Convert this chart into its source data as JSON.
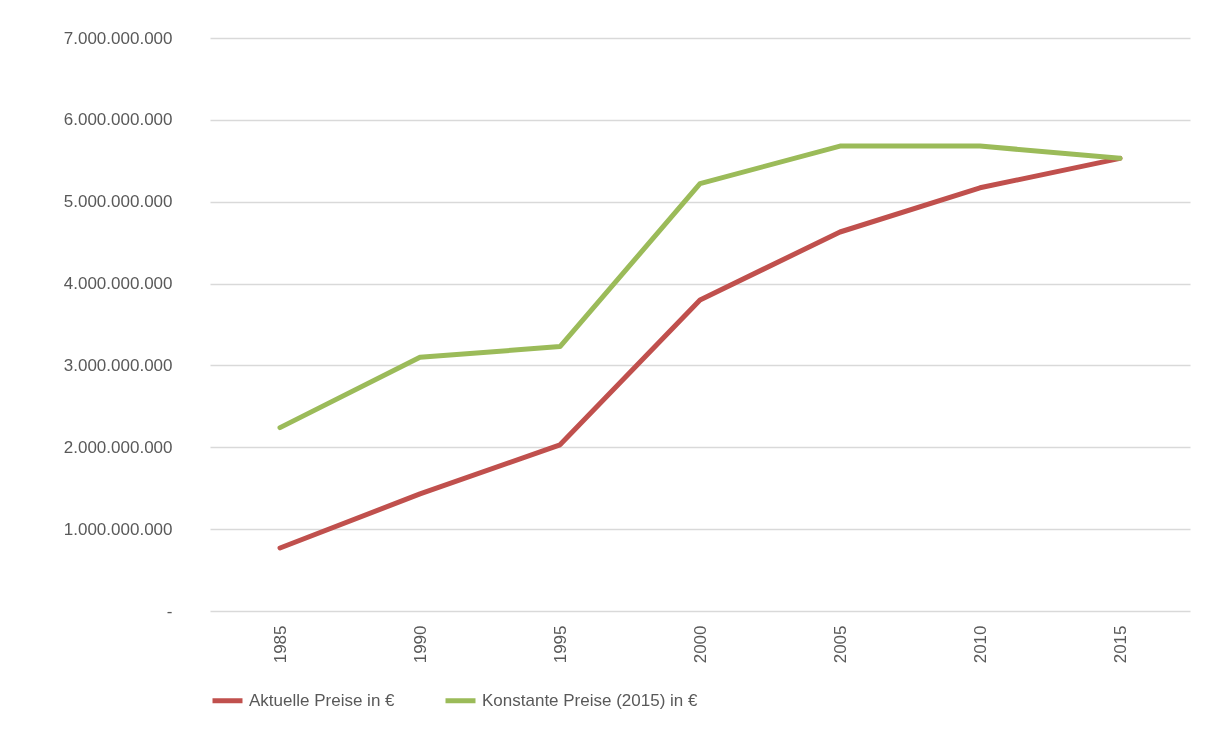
{
  "chart_data": {
    "type": "line",
    "categories": [
      "1985",
      "1990",
      "1995",
      "2000",
      "2005",
      "2010",
      "2015"
    ],
    "series": [
      {
        "name": "Aktuelle Preise in €",
        "color": "#c0504d",
        "values": [
          770000000,
          1430000000,
          2030000000,
          3800000000,
          4630000000,
          5170000000,
          5530000000
        ]
      },
      {
        "name": "Konstante Preise (2015) in €",
        "color": "#9bbb59",
        "values": [
          2240000000,
          3100000000,
          3230000000,
          5220000000,
          5680000000,
          5680000000,
          5530000000
        ]
      }
    ],
    "ylim": [
      0,
      7000000000
    ],
    "yticks": [
      {
        "value": 0,
        "label": "-"
      },
      {
        "value": 1000000000,
        "label": "1.000.000.000"
      },
      {
        "value": 2000000000,
        "label": "2.000.000.000"
      },
      {
        "value": 3000000000,
        "label": "3.000.000.000"
      },
      {
        "value": 4000000000,
        "label": "4.000.000.000"
      },
      {
        "value": 5000000000,
        "label": "5.000.000.000"
      },
      {
        "value": 6000000000,
        "label": "6.000.000.000"
      },
      {
        "value": 7000000000,
        "label": "7.000.000.000"
      }
    ],
    "grid": "y",
    "legend": "bottom",
    "marker": "none",
    "line_style": "solid"
  }
}
